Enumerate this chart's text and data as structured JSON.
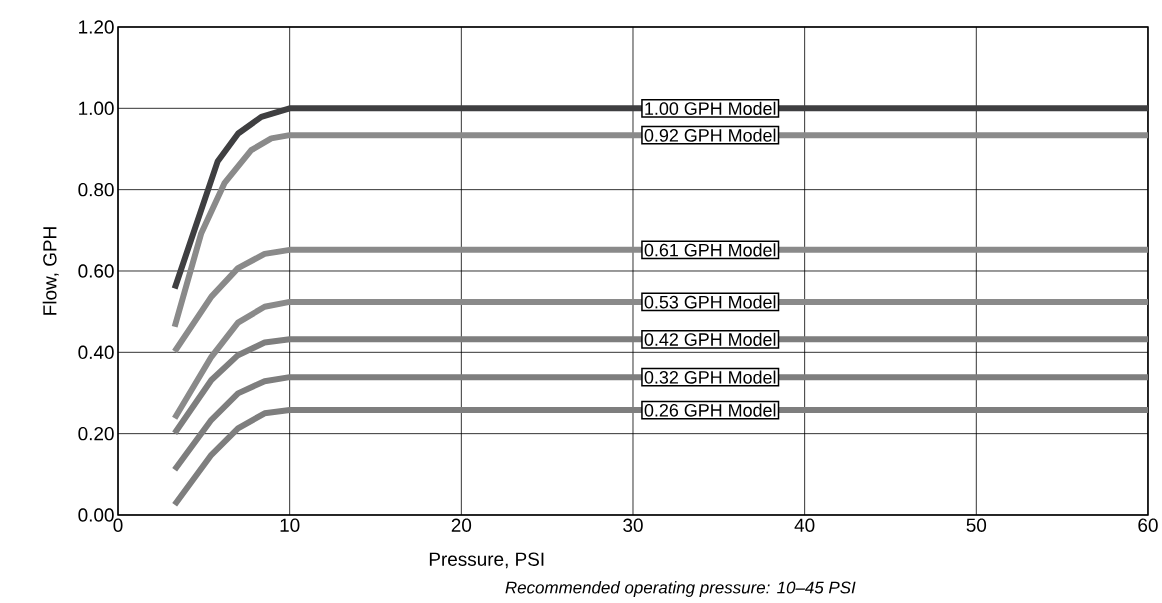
{
  "chart_data": {
    "type": "line",
    "xlabel": "Pressure, PSI",
    "ylabel": "Flow, GPH",
    "annotations": [
      "Recommended operating pressure: 10–45 PSI"
    ],
    "xlim": [
      0,
      60
    ],
    "ylim": [
      0,
      1.2
    ],
    "xticks": [
      0,
      10,
      20,
      30,
      40,
      50,
      60
    ],
    "yticks": [
      {
        "value": 0,
        "label": "0.00"
      },
      {
        "value": 0.2,
        "label": "0.20"
      },
      {
        "value": 0.4,
        "label": "0.40"
      },
      {
        "value": 0.6,
        "label": "0.60"
      },
      {
        "value": 0.8,
        "label": "0.80"
      },
      {
        "value": 1.0,
        "label": "1.00"
      },
      {
        "value": 1.2,
        "label": "1.20"
      }
    ],
    "grid": true,
    "line_style": "solid",
    "series": [
      {
        "name": "1.00 GPH Model",
        "color": "#3f3f41",
        "x": [
          3.3,
          5.8,
          7.0,
          8.35,
          10,
          60
        ],
        "values": [
          0.557,
          0.869,
          0.938,
          0.979,
          1.0,
          1.0
        ]
      },
      {
        "name": "0.92 GPH Model",
        "color": "#8a8a8a",
        "x": [
          3.3,
          4.85,
          6.2,
          7.76,
          8.93,
          10,
          60
        ],
        "values": [
          0.463,
          0.693,
          0.816,
          0.897,
          0.926,
          0.934,
          0.934
        ]
      },
      {
        "name": "0.61 GPH Model",
        "color": "#8a8a8a",
        "x": [
          3.3,
          5.44,
          6.99,
          8.54,
          10,
          60
        ],
        "values": [
          0.402,
          0.537,
          0.607,
          0.642,
          0.652,
          0.652
        ]
      },
      {
        "name": "0.53 GPH Model",
        "color": "#8a8a8a",
        "x": [
          3.3,
          5.44,
          6.99,
          8.54,
          10,
          60
        ],
        "values": [
          0.238,
          0.389,
          0.473,
          0.512,
          0.524,
          0.524
        ]
      },
      {
        "name": "0.42 GPH Model",
        "color": "#7e7e7e",
        "x": [
          3.3,
          5.44,
          6.99,
          8.54,
          10,
          60
        ],
        "values": [
          0.201,
          0.332,
          0.393,
          0.424,
          0.432,
          0.432
        ]
      },
      {
        "name": "0.32 GPH Model",
        "color": "#7e7e7e",
        "x": [
          3.3,
          5.44,
          6.99,
          8.54,
          10,
          60
        ],
        "values": [
          0.111,
          0.234,
          0.299,
          0.329,
          0.339,
          0.339
        ]
      },
      {
        "name": "0.26 GPH Model",
        "color": "#7e7e7e",
        "x": [
          3.3,
          5.44,
          6.99,
          8.54,
          10,
          60
        ],
        "values": [
          0.025,
          0.148,
          0.213,
          0.25,
          0.258,
          0.258
        ]
      }
    ]
  }
}
